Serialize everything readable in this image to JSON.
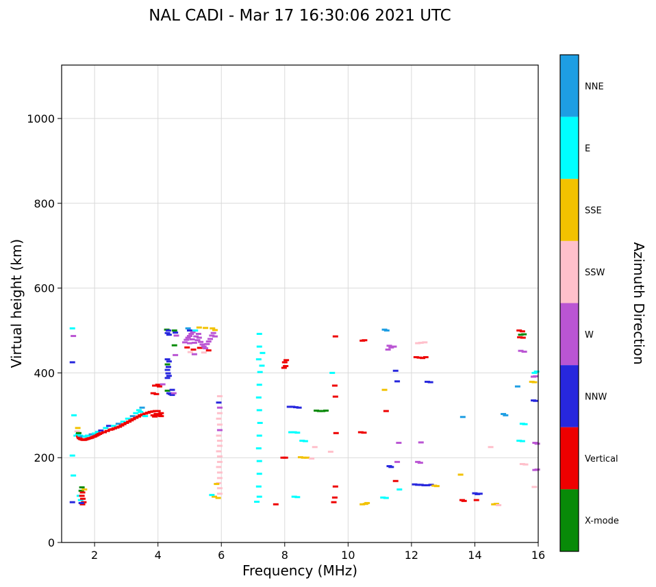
{
  "title": "NAL CADI - Mar 17 16:30:06 2021 UTC",
  "chart_data": {
    "type": "scatter",
    "title": "NAL CADI - Mar 17 16:30:06 2021 UTC",
    "xlabel": "Frequency (MHz)",
    "ylabel": "Virtual height (km)",
    "xlim": [
      0.96,
      16
    ],
    "ylim": [
      0,
      1126
    ],
    "xticks": [
      2,
      4,
      6,
      8,
      10,
      12,
      14,
      16
    ],
    "yticks": [
      0,
      200,
      400,
      600,
      800,
      1000
    ],
    "grid": true,
    "legend_position": "right-colorbar",
    "colorbar": {
      "label": "Azimuth Direction",
      "categories": [
        {
          "label": "NNE",
          "color": "#1E9EE3"
        },
        {
          "label": "E",
          "color": "#00FFFF"
        },
        {
          "label": "SSE",
          "color": "#F2C200"
        },
        {
          "label": "SSW",
          "color": "#FFC0CB"
        },
        {
          "label": "W",
          "color": "#BA55D3"
        },
        {
          "label": "NNW",
          "color": "#2727DD"
        },
        {
          "label": "Vertical",
          "color": "#EE0000"
        },
        {
          "label": "X-mode",
          "color": "#088A08"
        }
      ]
    },
    "point_key": {
      "N": "NNE",
      "E": "E",
      "S": "SSE",
      "P": "SSW",
      "W": "W",
      "B": "NNW",
      "V": "Vertical",
      "X": "X-mode"
    },
    "points": [
      [
        1.3,
        505,
        "E"
      ],
      [
        1.33,
        487,
        "W"
      ],
      [
        1.3,
        425,
        "B"
      ],
      [
        1.35,
        300,
        "E"
      ],
      [
        1.3,
        205,
        "E"
      ],
      [
        1.33,
        158,
        "E"
      ],
      [
        1.3,
        95,
        "B"
      ],
      [
        1.52,
        110,
        "E"
      ],
      [
        1.56,
        100,
        "E"
      ],
      [
        1.58,
        122,
        "X"
      ],
      [
        1.6,
        130,
        "X"
      ],
      [
        1.62,
        118,
        "V"
      ],
      [
        1.6,
        110,
        "V"
      ],
      [
        1.63,
        103,
        "V"
      ],
      [
        1.66,
        95,
        "V"
      ],
      [
        1.62,
        90,
        "V"
      ],
      [
        1.68,
        125,
        "S"
      ],
      [
        1.58,
        93,
        "B"
      ],
      [
        1.42,
        252,
        "E"
      ],
      [
        1.45,
        262,
        "P"
      ],
      [
        1.47,
        270,
        "S"
      ],
      [
        1.48,
        256,
        "E"
      ],
      [
        1.5,
        258,
        "X"
      ],
      [
        1.5,
        250,
        "V"
      ],
      [
        1.52,
        246,
        "V"
      ],
      [
        1.55,
        252,
        "E"
      ],
      [
        1.56,
        244,
        "V"
      ],
      [
        1.6,
        243,
        "V"
      ],
      [
        1.62,
        250,
        "N"
      ],
      [
        1.64,
        242,
        "V"
      ],
      [
        1.68,
        242,
        "V"
      ],
      [
        1.7,
        250,
        "E"
      ],
      [
        1.72,
        243,
        "V"
      ],
      [
        1.76,
        244,
        "V"
      ],
      [
        1.78,
        252,
        "E"
      ],
      [
        1.8,
        245,
        "V"
      ],
      [
        1.85,
        246,
        "V"
      ],
      [
        1.9,
        247,
        "V"
      ],
      [
        1.9,
        255,
        "N"
      ],
      [
        1.95,
        249,
        "V"
      ],
      [
        2.0,
        250,
        "V"
      ],
      [
        2.0,
        257,
        "E"
      ],
      [
        2.05,
        252,
        "V"
      ],
      [
        2.1,
        254,
        "V"
      ],
      [
        2.1,
        261,
        "E"
      ],
      [
        2.15,
        256,
        "V"
      ],
      [
        2.2,
        258,
        "V"
      ],
      [
        2.2,
        264,
        "B"
      ],
      [
        2.3,
        260,
        "V"
      ],
      [
        2.35,
        270,
        "E"
      ],
      [
        2.4,
        263,
        "V"
      ],
      [
        2.45,
        275,
        "B"
      ],
      [
        2.5,
        266,
        "V"
      ],
      [
        2.55,
        267,
        "V"
      ],
      [
        2.6,
        275,
        "E"
      ],
      [
        2.62,
        269,
        "V"
      ],
      [
        2.7,
        271,
        "V"
      ],
      [
        2.75,
        280,
        "N"
      ],
      [
        2.78,
        273,
        "V"
      ],
      [
        2.85,
        276,
        "V"
      ],
      [
        2.9,
        285,
        "E"
      ],
      [
        2.92,
        279,
        "V"
      ],
      [
        3.0,
        282,
        "V"
      ],
      [
        3.05,
        292,
        "E"
      ],
      [
        3.08,
        285,
        "V"
      ],
      [
        3.15,
        288,
        "V"
      ],
      [
        3.2,
        298,
        "N"
      ],
      [
        3.22,
        291,
        "V"
      ],
      [
        3.3,
        294,
        "V"
      ],
      [
        3.3,
        305,
        "E"
      ],
      [
        3.38,
        297,
        "V"
      ],
      [
        3.4,
        312,
        "E"
      ],
      [
        3.45,
        300,
        "V"
      ],
      [
        3.45,
        308,
        "E"
      ],
      [
        3.5,
        318,
        "N"
      ],
      [
        3.52,
        302,
        "V"
      ],
      [
        3.6,
        304,
        "V"
      ],
      [
        3.6,
        298,
        "E"
      ],
      [
        3.68,
        306,
        "V"
      ],
      [
        3.76,
        308,
        "V"
      ],
      [
        3.84,
        309,
        "V"
      ],
      [
        3.92,
        310,
        "V"
      ],
      [
        4.0,
        310,
        "V"
      ],
      [
        3.85,
        300,
        "V"
      ],
      [
        3.9,
        297,
        "V"
      ],
      [
        3.95,
        303,
        "V"
      ],
      [
        4.0,
        299,
        "V"
      ],
      [
        4.05,
        302,
        "V"
      ],
      [
        4.1,
        298,
        "V"
      ],
      [
        4.1,
        305,
        "V"
      ],
      [
        3.85,
        352,
        "V"
      ],
      [
        3.95,
        350,
        "V"
      ],
      [
        3.9,
        370,
        "V"
      ],
      [
        4.0,
        372,
        "V"
      ],
      [
        4.05,
        368,
        "V"
      ],
      [
        4.15,
        373,
        "W"
      ],
      [
        4.3,
        358,
        "X"
      ],
      [
        4.35,
        352,
        "B"
      ],
      [
        4.4,
        350,
        "B"
      ],
      [
        4.45,
        348,
        "B"
      ],
      [
        4.5,
        352,
        "W"
      ],
      [
        4.45,
        360,
        "B"
      ],
      [
        4.28,
        502,
        "X"
      ],
      [
        4.33,
        500,
        "B"
      ],
      [
        4.3,
        494,
        "B"
      ],
      [
        4.35,
        490,
        "B"
      ],
      [
        4.3,
        432,
        "B"
      ],
      [
        4.35,
        427,
        "B"
      ],
      [
        4.3,
        420,
        "X"
      ],
      [
        4.33,
        414,
        "B"
      ],
      [
        4.3,
        407,
        "B"
      ],
      [
        4.32,
        399,
        "B"
      ],
      [
        4.35,
        393,
        "B"
      ],
      [
        4.3,
        388,
        "B"
      ],
      [
        4.52,
        500,
        "X"
      ],
      [
        4.55,
        495,
        "B"
      ],
      [
        4.58,
        488,
        "W"
      ],
      [
        4.52,
        465,
        "X"
      ],
      [
        4.55,
        442,
        "W"
      ],
      [
        4.85,
        472,
        "W"
      ],
      [
        4.9,
        478,
        "W"
      ],
      [
        4.95,
        483,
        "W"
      ],
      [
        4.95,
        505,
        "N"
      ],
      [
        5.0,
        487,
        "W"
      ],
      [
        5.0,
        470,
        "W"
      ],
      [
        5.0,
        500,
        "B"
      ],
      [
        5.02,
        449,
        "P"
      ],
      [
        4.92,
        460,
        "V"
      ],
      [
        5.05,
        492,
        "W"
      ],
      [
        5.08,
        479,
        "W"
      ],
      [
        5.1,
        496,
        "W"
      ],
      [
        5.12,
        455,
        "V"
      ],
      [
        5.15,
        471,
        "W"
      ],
      [
        5.15,
        444,
        "W"
      ],
      [
        5.18,
        500,
        "E"
      ],
      [
        5.2,
        486,
        "W"
      ],
      [
        5.25,
        477,
        "W"
      ],
      [
        5.28,
        492,
        "W"
      ],
      [
        5.3,
        483,
        "W"
      ],
      [
        5.3,
        507,
        "S"
      ],
      [
        5.32,
        459,
        "V"
      ],
      [
        5.35,
        473,
        "W"
      ],
      [
        5.4,
        467,
        "W"
      ],
      [
        5.45,
        462,
        "W"
      ],
      [
        5.45,
        448,
        "P"
      ],
      [
        5.5,
        458,
        "W"
      ],
      [
        5.5,
        506,
        "S"
      ],
      [
        5.55,
        468,
        "W"
      ],
      [
        5.6,
        474,
        "W"
      ],
      [
        5.6,
        453,
        "V"
      ],
      [
        5.65,
        480,
        "W"
      ],
      [
        5.7,
        488,
        "W"
      ],
      [
        5.72,
        505,
        "S"
      ],
      [
        5.75,
        494,
        "W"
      ],
      [
        5.8,
        486,
        "W"
      ],
      [
        5.8,
        501,
        "S"
      ],
      [
        5.95,
        345,
        "P"
      ],
      [
        5.92,
        330,
        "B"
      ],
      [
        5.95,
        318,
        "W"
      ],
      [
        5.95,
        305,
        "P"
      ],
      [
        5.92,
        292,
        "P"
      ],
      [
        5.95,
        278,
        "P"
      ],
      [
        5.95,
        265,
        "W"
      ],
      [
        5.92,
        252,
        "P"
      ],
      [
        5.95,
        240,
        "P"
      ],
      [
        5.95,
        228,
        "P"
      ],
      [
        5.92,
        215,
        "P"
      ],
      [
        5.95,
        203,
        "P"
      ],
      [
        5.95,
        190,
        "P"
      ],
      [
        5.92,
        178,
        "P"
      ],
      [
        5.95,
        165,
        "P"
      ],
      [
        5.95,
        152,
        "P"
      ],
      [
        5.92,
        140,
        "P"
      ],
      [
        5.95,
        128,
        "P"
      ],
      [
        5.95,
        115,
        "P"
      ],
      [
        5.9,
        105,
        "S"
      ],
      [
        5.85,
        138,
        "S"
      ],
      [
        5.78,
        108,
        "S"
      ],
      [
        5.7,
        112,
        "E"
      ],
      [
        7.2,
        492,
        "E"
      ],
      [
        7.2,
        462,
        "E"
      ],
      [
        7.18,
        432,
        "E"
      ],
      [
        7.22,
        402,
        "E"
      ],
      [
        7.2,
        372,
        "E"
      ],
      [
        7.18,
        342,
        "E"
      ],
      [
        7.2,
        312,
        "E"
      ],
      [
        7.22,
        282,
        "E"
      ],
      [
        7.2,
        252,
        "E"
      ],
      [
        7.18,
        222,
        "E"
      ],
      [
        7.2,
        192,
        "E"
      ],
      [
        7.2,
        162,
        "E"
      ],
      [
        7.18,
        132,
        "E"
      ],
      [
        7.2,
        108,
        "E"
      ],
      [
        7.12,
        96,
        "E"
      ],
      [
        7.3,
        447,
        "E"
      ],
      [
        7.28,
        417,
        "E"
      ],
      [
        7.72,
        90,
        "V"
      ],
      [
        7.95,
        200,
        "V"
      ],
      [
        8.02,
        200,
        "V"
      ],
      [
        7.98,
        412,
        "V"
      ],
      [
        8.03,
        416,
        "V"
      ],
      [
        8.0,
        425,
        "V"
      ],
      [
        8.05,
        430,
        "V"
      ],
      [
        8.15,
        320,
        "B"
      ],
      [
        8.25,
        320,
        "B"
      ],
      [
        8.35,
        319,
        "B"
      ],
      [
        8.45,
        318,
        "B"
      ],
      [
        9.0,
        311,
        "X"
      ],
      [
        9.1,
        310,
        "X"
      ],
      [
        9.2,
        310,
        "X"
      ],
      [
        9.3,
        311,
        "X"
      ],
      [
        8.2,
        260,
        "E"
      ],
      [
        8.3,
        260,
        "E"
      ],
      [
        8.4,
        259,
        "E"
      ],
      [
        8.55,
        240,
        "E"
      ],
      [
        8.65,
        239,
        "E"
      ],
      [
        8.5,
        201,
        "S"
      ],
      [
        8.6,
        200,
        "S"
      ],
      [
        8.7,
        200,
        "S"
      ],
      [
        8.95,
        225,
        "P"
      ],
      [
        8.85,
        198,
        "P"
      ],
      [
        8.3,
        108,
        "E"
      ],
      [
        8.4,
        107,
        "E"
      ],
      [
        9.6,
        486,
        "V"
      ],
      [
        9.58,
        370,
        "V"
      ],
      [
        9.6,
        344,
        "V"
      ],
      [
        9.62,
        258,
        "V"
      ],
      [
        9.6,
        132,
        "V"
      ],
      [
        9.58,
        106,
        "V"
      ],
      [
        9.55,
        95,
        "V"
      ],
      [
        9.5,
        400,
        "E"
      ],
      [
        9.45,
        214,
        "P"
      ],
      [
        10.45,
        476,
        "V"
      ],
      [
        10.52,
        477,
        "V"
      ],
      [
        10.4,
        260,
        "V"
      ],
      [
        10.5,
        259,
        "V"
      ],
      [
        10.45,
        90,
        "S"
      ],
      [
        10.55,
        91,
        "S"
      ],
      [
        10.6,
        93,
        "S"
      ],
      [
        11.15,
        502,
        "N"
      ],
      [
        11.22,
        500,
        "N"
      ],
      [
        11.3,
        464,
        "W"
      ],
      [
        11.36,
        460,
        "W"
      ],
      [
        11.26,
        455,
        "W"
      ],
      [
        11.45,
        462,
        "W"
      ],
      [
        11.2,
        310,
        "V"
      ],
      [
        11.15,
        360,
        "S"
      ],
      [
        11.3,
        180,
        "B"
      ],
      [
        11.36,
        178,
        "B"
      ],
      [
        11.1,
        106,
        "E"
      ],
      [
        11.2,
        105,
        "E"
      ],
      [
        11.55,
        380,
        "B"
      ],
      [
        11.5,
        405,
        "B"
      ],
      [
        11.6,
        235,
        "W"
      ],
      [
        11.55,
        190,
        "W"
      ],
      [
        11.62,
        125,
        "E"
      ],
      [
        11.5,
        145,
        "V"
      ],
      [
        12.2,
        470,
        "P"
      ],
      [
        12.3,
        471,
        "P"
      ],
      [
        12.42,
        472,
        "P"
      ],
      [
        12.15,
        437,
        "V"
      ],
      [
        12.25,
        436,
        "V"
      ],
      [
        12.35,
        435,
        "V"
      ],
      [
        12.45,
        437,
        "V"
      ],
      [
        12.5,
        379,
        "B"
      ],
      [
        12.6,
        378,
        "B"
      ],
      [
        12.3,
        236,
        "W"
      ],
      [
        12.2,
        190,
        "W"
      ],
      [
        12.28,
        188,
        "W"
      ],
      [
        12.1,
        137,
        "B"
      ],
      [
        12.2,
        136,
        "B"
      ],
      [
        12.3,
        136,
        "B"
      ],
      [
        12.4,
        135,
        "B"
      ],
      [
        12.5,
        135,
        "B"
      ],
      [
        12.62,
        136,
        "B"
      ],
      [
        12.72,
        134,
        "S"
      ],
      [
        12.8,
        133,
        "S"
      ],
      [
        13.55,
        160,
        "S"
      ],
      [
        13.6,
        100,
        "V"
      ],
      [
        13.66,
        98,
        "V"
      ],
      [
        13.62,
        296,
        "N"
      ],
      [
        14.0,
        116,
        "B"
      ],
      [
        14.08,
        114,
        "B"
      ],
      [
        14.16,
        115,
        "B"
      ],
      [
        14.05,
        100,
        "V"
      ],
      [
        14.5,
        225,
        "P"
      ],
      [
        14.9,
        303,
        "N"
      ],
      [
        14.97,
        300,
        "N"
      ],
      [
        14.6,
        90,
        "S"
      ],
      [
        14.68,
        91,
        "S"
      ],
      [
        14.75,
        88,
        "P"
      ],
      [
        15.4,
        500,
        "V"
      ],
      [
        15.5,
        498,
        "V"
      ],
      [
        15.42,
        484,
        "V"
      ],
      [
        15.52,
        483,
        "V"
      ],
      [
        15.45,
        490,
        "X"
      ],
      [
        15.55,
        491,
        "X"
      ],
      [
        15.45,
        452,
        "W"
      ],
      [
        15.56,
        450,
        "W"
      ],
      [
        15.88,
        400,
        "E"
      ],
      [
        15.95,
        403,
        "E"
      ],
      [
        15.85,
        391,
        "W"
      ],
      [
        15.92,
        392,
        "W"
      ],
      [
        15.8,
        379,
        "S"
      ],
      [
        15.88,
        378,
        "S"
      ],
      [
        15.35,
        368,
        "N"
      ],
      [
        15.85,
        335,
        "B"
      ],
      [
        15.92,
        334,
        "B"
      ],
      [
        15.5,
        280,
        "E"
      ],
      [
        15.58,
        279,
        "E"
      ],
      [
        15.4,
        240,
        "E"
      ],
      [
        15.5,
        239,
        "E"
      ],
      [
        15.9,
        235,
        "W"
      ],
      [
        15.97,
        233,
        "W"
      ],
      [
        15.5,
        185,
        "P"
      ],
      [
        15.6,
        184,
        "P"
      ],
      [
        15.9,
        171,
        "W"
      ],
      [
        15.97,
        172,
        "W"
      ],
      [
        15.88,
        131,
        "P"
      ]
    ]
  }
}
